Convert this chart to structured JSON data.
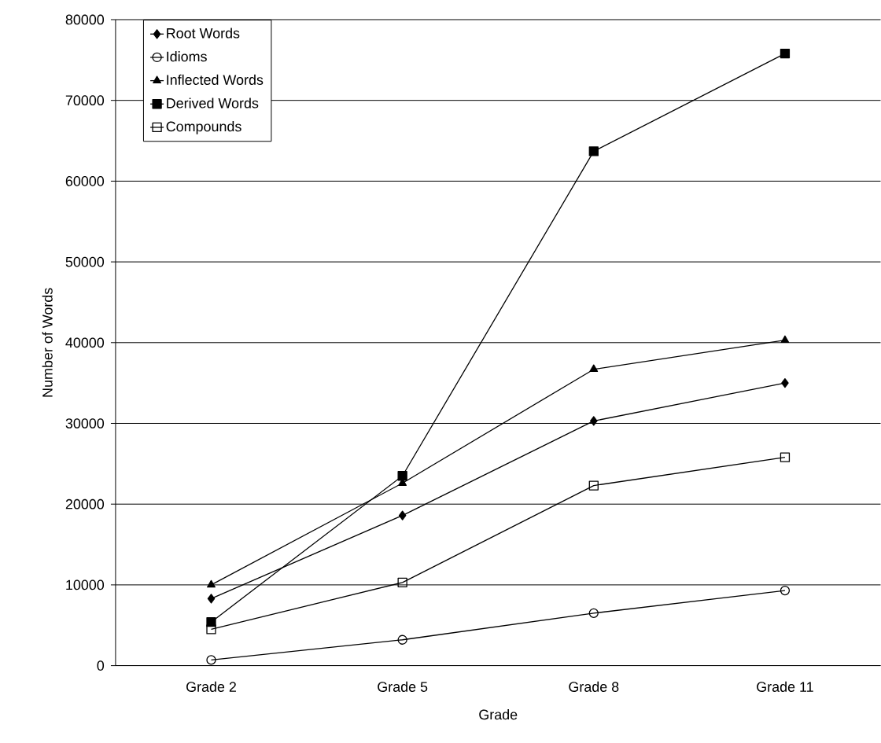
{
  "chart_data": {
    "type": "line",
    "xlabel": "Grade",
    "ylabel": "Number of Words",
    "categories": [
      "Grade 2",
      "Grade 5",
      "Grade 8",
      "Grade 11"
    ],
    "series": [
      {
        "name": "Root Words",
        "color": "#000000",
        "marker": "diamond",
        "values": [
          8300,
          18600,
          30300,
          35000
        ]
      },
      {
        "name": "Idioms",
        "color": "#000000",
        "marker": "circle",
        "values": [
          700,
          3200,
          6500,
          9300
        ]
      },
      {
        "name": "Inflected Words",
        "color": "#000000",
        "marker": "triangle",
        "values": [
          10000,
          22600,
          36700,
          40300
        ]
      },
      {
        "name": "Derived Words",
        "color": "#000000",
        "marker": "square",
        "values": [
          5400,
          23500,
          63700,
          75800
        ]
      },
      {
        "name": "Compounds",
        "color": "#000000",
        "marker": "square",
        "values": [
          4500,
          10300,
          22300,
          25800
        ]
      }
    ],
    "ylim": [
      0,
      80000
    ],
    "yticks": [
      0,
      10000,
      20000,
      30000,
      40000,
      50000,
      60000,
      70000,
      80000
    ],
    "grid": "y",
    "legend": "top left",
    "line_style": "solid"
  }
}
